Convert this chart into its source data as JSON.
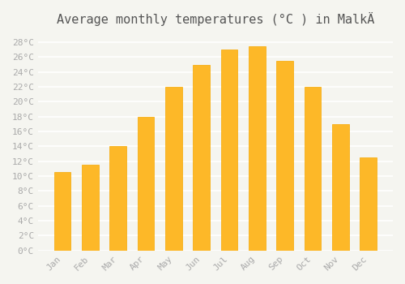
{
  "months": [
    "Jan",
    "Feb",
    "Mar",
    "Apr",
    "May",
    "Jun",
    "Jul",
    "Aug",
    "Sep",
    "Oct",
    "Nov",
    "Dec"
  ],
  "values": [
    10.5,
    11.5,
    14.0,
    18.0,
    22.0,
    25.0,
    27.0,
    27.5,
    25.5,
    22.0,
    17.0,
    12.5
  ],
  "bar_color": "#FDB828",
  "bar_edge_color": "#F5A800",
  "title": "Average monthly temperatures (°C ) in MalkÄ",
  "title_fontsize": 11,
  "ylabel": "",
  "ylim": [
    0,
    29
  ],
  "yticks": [
    0,
    2,
    4,
    6,
    8,
    10,
    12,
    14,
    16,
    18,
    20,
    22,
    24,
    26,
    28
  ],
  "background_color": "#f5f5f0",
  "grid_color": "#ffffff",
  "tick_label_color": "#aaaaaa",
  "title_color": "#555555",
  "font_family": "monospace"
}
